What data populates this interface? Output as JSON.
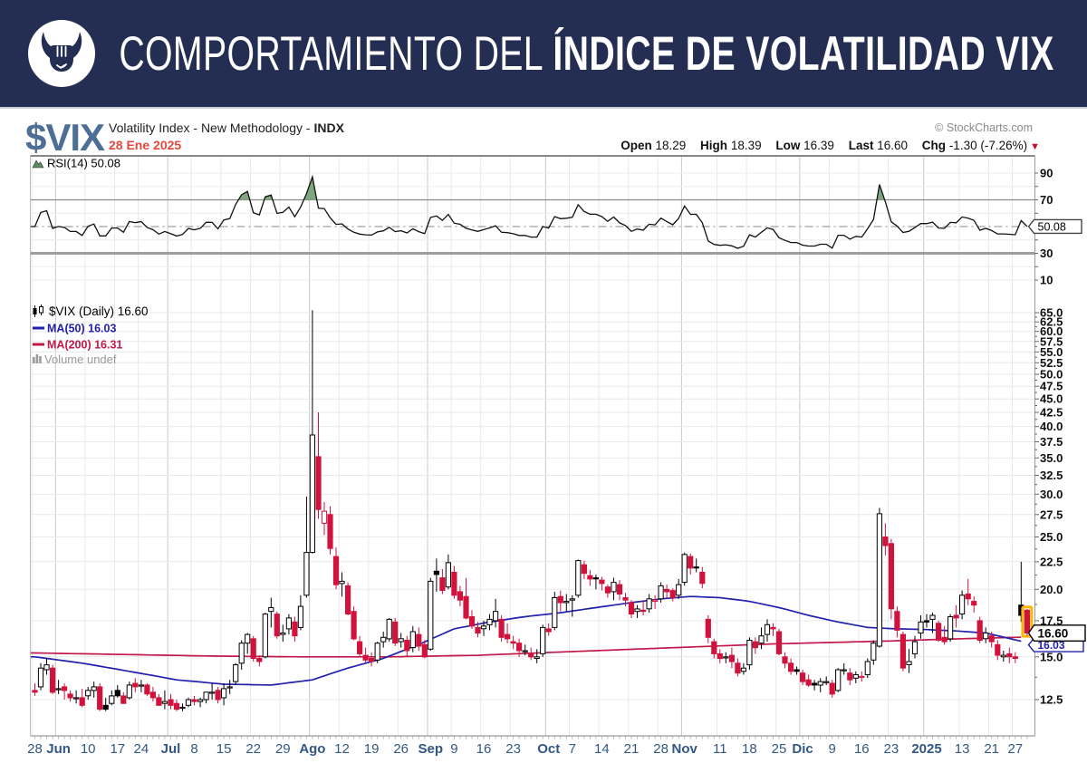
{
  "banner": {
    "logo": "bull-icon",
    "title_regular": "COMPORTAMIENTO DEL",
    "title_bold": "ÍNDICE DE VOLATILIDAD VIX",
    "bg_color": "#242e52"
  },
  "header": {
    "symbol": "$VIX",
    "description": "Volatility Index - New Methodology - ",
    "exchange": "INDX",
    "date": "28 Ene 2025",
    "credit": "© StockCharts.com",
    "quote": {
      "open_label": "Open",
      "open_value": "18.29",
      "high_label": "High",
      "high_value": "18.39",
      "low_label": "Low",
      "low_value": "16.39",
      "last_label": "Last",
      "last_value": "16.60",
      "chg_label": "Chg",
      "chg_value": "-1.30 (-7.26%)",
      "arrow": "▼"
    }
  },
  "chart_data": {
    "type": "candlestick",
    "symbol": "$VIX",
    "timeframe": "Daily",
    "legend": {
      "rsi": "RSI(14) 50.08",
      "price": "$VIX (Daily) 16.60",
      "ma50": "MA(50) 16.03",
      "ma200": "MA(200) 16.31",
      "volume": "Volume undef"
    },
    "last": {
      "price": "16.60",
      "ma50": "16.03",
      "ma200": "16.31",
      "rsi": "50.08"
    },
    "rsi_axis": {
      "ticks": [
        90,
        70,
        30,
        10
      ],
      "overbought": 70,
      "mid": 50,
      "oversold": 30,
      "light_lines": [
        90,
        80,
        60,
        40,
        20,
        10
      ]
    },
    "price_axis": {
      "scale": "log",
      "ticks": [
        65,
        62.5,
        60,
        57.5,
        55,
        52.5,
        50,
        47.5,
        45,
        42.5,
        40,
        37.5,
        35,
        32.5,
        30,
        27.5,
        25,
        22.5,
        20,
        17.5,
        15,
        12.5
      ]
    },
    "x_ticks": [
      {
        "i": 0,
        "t": "28"
      },
      {
        "i": 4,
        "t": "Jun",
        "m": true
      },
      {
        "i": 9,
        "t": "10"
      },
      {
        "i": 14,
        "t": "17"
      },
      {
        "i": 18,
        "t": "24"
      },
      {
        "i": 23,
        "t": "Jul",
        "m": true
      },
      {
        "i": 27,
        "t": "8"
      },
      {
        "i": 32,
        "t": "15"
      },
      {
        "i": 37,
        "t": "22"
      },
      {
        "i": 42,
        "t": "29"
      },
      {
        "i": 47,
        "t": "Ago",
        "m": true
      },
      {
        "i": 52,
        "t": "12"
      },
      {
        "i": 57,
        "t": "19"
      },
      {
        "i": 62,
        "t": "26"
      },
      {
        "i": 67,
        "t": "Sep",
        "m": true
      },
      {
        "i": 71,
        "t": "9"
      },
      {
        "i": 76,
        "t": "16"
      },
      {
        "i": 81,
        "t": "23"
      },
      {
        "i": 87,
        "t": "Oct",
        "m": true
      },
      {
        "i": 91,
        "t": "7"
      },
      {
        "i": 96,
        "t": "14"
      },
      {
        "i": 101,
        "t": "21"
      },
      {
        "i": 106,
        "t": "28"
      },
      {
        "i": 110,
        "t": "Nov",
        "m": true
      },
      {
        "i": 116,
        "t": "11"
      },
      {
        "i": 121,
        "t": "18"
      },
      {
        "i": 126,
        "t": "25"
      },
      {
        "i": 130,
        "t": "Dic",
        "m": true
      },
      {
        "i": 135,
        "t": "9"
      },
      {
        "i": 140,
        "t": "16"
      },
      {
        "i": 145,
        "t": "23"
      },
      {
        "i": 151,
        "t": "2025",
        "m": true
      },
      {
        "i": 157,
        "t": "13"
      },
      {
        "i": 162,
        "t": "21"
      },
      {
        "i": 166,
        "t": "27"
      }
    ],
    "candles": [
      [
        13.0,
        13.4,
        12.7,
        12.9
      ],
      [
        13.2,
        14.6,
        13.0,
        14.3
      ],
      [
        14.2,
        14.9,
        13.9,
        14.5
      ],
      [
        14.3,
        14.5,
        12.8,
        12.9
      ],
      [
        13.1,
        13.6,
        12.8,
        13.1
      ],
      [
        13.2,
        13.4,
        12.5,
        13.0
      ],
      [
        12.8,
        13.0,
        12.4,
        12.6
      ],
      [
        12.6,
        13.0,
        12.3,
        12.6
      ],
      [
        12.6,
        13.1,
        12.1,
        12.2
      ],
      [
        12.7,
        13.2,
        12.5,
        13.0
      ],
      [
        13.0,
        13.5,
        12.6,
        13.2
      ],
      [
        13.2,
        13.4,
        11.9,
        12.0
      ],
      [
        12.2,
        12.6,
        11.9,
        12.0
      ],
      [
        12.3,
        13.0,
        12.2,
        12.7
      ],
      [
        13.0,
        13.3,
        12.6,
        12.7
      ],
      [
        12.7,
        12.9,
        12.3,
        12.3
      ],
      [
        12.6,
        13.5,
        12.5,
        13.3
      ],
      [
        13.4,
        13.7,
        12.9,
        13.2
      ],
      [
        13.3,
        13.6,
        12.9,
        13.3
      ],
      [
        13.3,
        13.4,
        12.7,
        12.8
      ],
      [
        12.9,
        13.2,
        12.4,
        12.6
      ],
      [
        12.6,
        12.8,
        12.2,
        12.2
      ],
      [
        12.3,
        13.0,
        12.0,
        12.4
      ],
      [
        12.5,
        12.8,
        12.0,
        12.2
      ],
      [
        12.3,
        12.5,
        11.9,
        12.0
      ],
      [
        12.1,
        12.3,
        11.9,
        12.1
      ],
      [
        12.2,
        12.6,
        12.1,
        12.5
      ],
      [
        12.5,
        12.7,
        12.2,
        12.4
      ],
      [
        12.4,
        12.6,
        12.1,
        12.5
      ],
      [
        12.5,
        12.9,
        12.3,
        12.9
      ],
      [
        12.9,
        13.4,
        12.5,
        12.9
      ],
      [
        13.0,
        13.2,
        12.3,
        12.5
      ],
      [
        12.6,
        13.4,
        12.2,
        13.1
      ],
      [
        13.2,
        13.6,
        12.8,
        13.2
      ],
      [
        13.5,
        14.6,
        13.3,
        14.5
      ],
      [
        14.6,
        16.1,
        14.2,
        15.9
      ],
      [
        15.9,
        16.6,
        15.2,
        16.5
      ],
      [
        16.2,
        16.4,
        14.7,
        14.9
      ],
      [
        14.9,
        15.1,
        14.4,
        14.7
      ],
      [
        15.0,
        18.1,
        14.9,
        18.0
      ],
      [
        18.2,
        19.3,
        17.0,
        18.5
      ],
      [
        18.0,
        18.2,
        16.2,
        16.4
      ],
      [
        16.5,
        17.2,
        16.0,
        16.6
      ],
      [
        16.9,
        18.0,
        16.5,
        17.7
      ],
      [
        17.4,
        17.8,
        16.0,
        16.4
      ],
      [
        17.0,
        19.5,
        16.8,
        18.6
      ],
      [
        19.5,
        29.7,
        19.3,
        23.4
      ],
      [
        23.4,
        65.7,
        23.3,
        38.6
      ],
      [
        35.2,
        42.5,
        27.0,
        28.1
      ],
      [
        26.5,
        29.0,
        25.2,
        27.9
      ],
      [
        27.5,
        28.5,
        23.2,
        23.8
      ],
      [
        23.0,
        23.9,
        20.0,
        20.4
      ],
      [
        20.5,
        21.5,
        19.4,
        20.7
      ],
      [
        20.3,
        20.6,
        17.9,
        18.0
      ],
      [
        18.2,
        18.6,
        16.1,
        16.2
      ],
      [
        16.0,
        16.4,
        15.0,
        15.2
      ],
      [
        15.1,
        15.6,
        14.6,
        14.8
      ],
      [
        14.9,
        15.3,
        14.4,
        14.7
      ],
      [
        14.8,
        16.0,
        14.6,
        15.9
      ],
      [
        16.0,
        16.7,
        15.6,
        16.3
      ],
      [
        16.2,
        17.7,
        16.0,
        17.6
      ],
      [
        17.4,
        17.7,
        15.7,
        15.9
      ],
      [
        16.0,
        16.6,
        15.6,
        16.2
      ],
      [
        16.1,
        16.4,
        15.0,
        15.4
      ],
      [
        15.6,
        17.1,
        15.3,
        16.7
      ],
      [
        16.5,
        17.0,
        15.4,
        15.7
      ],
      [
        15.8,
        16.1,
        14.9,
        15.0
      ],
      [
        15.5,
        21.0,
        15.4,
        20.7
      ],
      [
        21.6,
        22.8,
        19.8,
        21.3
      ],
      [
        21.0,
        21.8,
        19.6,
        19.9
      ],
      [
        20.2,
        23.2,
        20.0,
        22.4
      ],
      [
        21.5,
        22.1,
        19.2,
        19.5
      ],
      [
        19.8,
        20.3,
        18.6,
        19.1
      ],
      [
        19.4,
        21.0,
        17.6,
        17.7
      ],
      [
        17.8,
        18.3,
        16.9,
        17.1
      ],
      [
        17.0,
        17.4,
        16.3,
        16.6
      ],
      [
        16.9,
        17.5,
        16.4,
        17.1
      ],
      [
        17.2,
        18.0,
        16.8,
        17.6
      ],
      [
        17.5,
        19.2,
        17.0,
        18.2
      ],
      [
        17.6,
        17.9,
        16.0,
        16.3
      ],
      [
        16.5,
        17.3,
        15.9,
        16.2
      ],
      [
        16.0,
        16.4,
        15.5,
        15.9
      ],
      [
        15.9,
        16.2,
        15.0,
        15.4
      ],
      [
        15.4,
        15.8,
        15.1,
        15.4
      ],
      [
        15.2,
        15.6,
        14.8,
        15.0
      ],
      [
        14.9,
        15.5,
        14.6,
        15.0
      ],
      [
        15.2,
        17.2,
        15.0,
        17.0
      ],
      [
        16.9,
        17.3,
        16.4,
        16.7
      ],
      [
        17.0,
        19.8,
        16.8,
        19.3
      ],
      [
        19.4,
        19.9,
        18.2,
        18.9
      ],
      [
        18.9,
        19.6,
        18.2,
        19.0
      ],
      [
        19.1,
        19.5,
        17.8,
        19.2
      ],
      [
        19.5,
        22.7,
        19.3,
        22.6
      ],
      [
        22.2,
        22.6,
        20.9,
        21.4
      ],
      [
        21.2,
        21.7,
        20.3,
        20.9
      ],
      [
        21.0,
        21.3,
        20.0,
        20.9
      ],
      [
        20.8,
        21.1,
        19.9,
        20.5
      ],
      [
        20.2,
        20.4,
        19.3,
        19.7
      ],
      [
        19.8,
        21.0,
        19.1,
        20.6
      ],
      [
        20.4,
        20.8,
        19.1,
        19.6
      ],
      [
        19.3,
        19.7,
        18.6,
        19.1
      ],
      [
        18.9,
        19.1,
        17.7,
        18.0
      ],
      [
        18.2,
        18.7,
        17.7,
        18.4
      ],
      [
        18.3,
        19.1,
        17.9,
        18.2
      ],
      [
        18.4,
        19.6,
        18.1,
        19.2
      ],
      [
        19.0,
        19.5,
        18.4,
        19.1
      ],
      [
        19.2,
        20.6,
        18.9,
        20.3
      ],
      [
        20.0,
        20.4,
        19.3,
        19.8
      ],
      [
        19.9,
        20.1,
        19.0,
        19.3
      ],
      [
        19.5,
        20.9,
        19.2,
        20.4
      ],
      [
        20.6,
        23.4,
        20.3,
        23.2
      ],
      [
        23.0,
        23.3,
        21.3,
        21.9
      ],
      [
        22.0,
        22.8,
        21.5,
        21.9
      ],
      [
        21.5,
        22.0,
        20.1,
        20.5
      ],
      [
        17.6,
        17.9,
        15.9,
        16.3
      ],
      [
        16.0,
        16.2,
        14.9,
        15.2
      ],
      [
        15.2,
        15.5,
        14.6,
        14.9
      ],
      [
        15.0,
        15.3,
        14.6,
        15.0
      ],
      [
        15.1,
        15.6,
        14.3,
        14.7
      ],
      [
        14.6,
        14.9,
        13.8,
        14.0
      ],
      [
        14.1,
        14.6,
        13.9,
        14.3
      ],
      [
        14.5,
        16.3,
        14.2,
        16.1
      ],
      [
        16.0,
        16.3,
        15.2,
        15.6
      ],
      [
        15.9,
        17.0,
        15.5,
        16.4
      ],
      [
        16.5,
        17.6,
        16.0,
        17.2
      ],
      [
        17.0,
        17.3,
        16.4,
        16.9
      ],
      [
        16.7,
        16.9,
        15.1,
        15.2
      ],
      [
        15.0,
        15.3,
        14.3,
        14.6
      ],
      [
        14.6,
        14.9,
        13.9,
        14.1
      ],
      [
        14.2,
        14.4,
        13.9,
        14.1
      ],
      [
        14.0,
        14.2,
        13.3,
        13.5
      ],
      [
        13.6,
        13.9,
        13.2,
        13.3
      ],
      [
        13.4,
        13.6,
        13.0,
        13.3
      ],
      [
        13.3,
        13.7,
        12.9,
        13.5
      ],
      [
        13.5,
        13.8,
        13.3,
        13.5
      ],
      [
        13.4,
        13.6,
        12.6,
        12.8
      ],
      [
        13.0,
        14.3,
        12.9,
        14.2
      ],
      [
        14.2,
        14.6,
        13.9,
        14.2
      ],
      [
        14.0,
        14.3,
        13.3,
        13.6
      ],
      [
        13.7,
        14.1,
        13.4,
        13.9
      ],
      [
        13.8,
        14.1,
        13.5,
        13.8
      ],
      [
        13.9,
        14.9,
        13.7,
        14.7
      ],
      [
        14.8,
        16.1,
        14.5,
        15.9
      ],
      [
        15.7,
        28.3,
        15.6,
        27.6
      ],
      [
        25.0,
        26.5,
        23.1,
        24.1
      ],
      [
        24.3,
        24.8,
        17.6,
        18.4
      ],
      [
        18.2,
        18.6,
        16.3,
        16.8
      ],
      [
        16.5,
        16.7,
        14.1,
        14.3
      ],
      [
        14.5,
        15.5,
        14.0,
        14.7
      ],
      [
        15.2,
        16.4,
        14.9,
        16.0
      ],
      [
        16.6,
        17.9,
        16.2,
        17.4
      ],
      [
        17.5,
        18.0,
        17.0,
        17.4
      ],
      [
        17.6,
        18.1,
        16.6,
        17.9
      ],
      [
        17.3,
        17.5,
        16.0,
        16.1
      ],
      [
        16.3,
        17.1,
        15.8,
        16.0
      ],
      [
        16.2,
        18.0,
        16.0,
        17.8
      ],
      [
        17.9,
        18.7,
        17.0,
        17.7
      ],
      [
        18.0,
        19.9,
        17.6,
        19.5
      ],
      [
        19.6,
        20.9,
        18.7,
        19.2
      ],
      [
        19.0,
        19.4,
        18.1,
        18.7
      ],
      [
        17.5,
        17.8,
        15.9,
        16.1
      ],
      [
        16.2,
        17.0,
        15.9,
        16.6
      ],
      [
        16.4,
        16.7,
        15.6,
        16.0
      ],
      [
        15.8,
        16.1,
        14.8,
        15.1
      ],
      [
        15.0,
        15.4,
        14.7,
        15.1
      ],
      [
        15.2,
        15.6,
        14.6,
        15.0
      ],
      [
        15.0,
        15.3,
        14.6,
        14.9
      ],
      [
        18.7,
        22.5,
        17.4,
        17.9
      ],
      [
        18.3,
        18.4,
        16.4,
        16.6
      ]
    ],
    "ma50": [
      [
        0,
        15.0
      ],
      [
        8,
        14.6
      ],
      [
        16,
        14.1
      ],
      [
        24,
        13.6
      ],
      [
        32,
        13.35
      ],
      [
        40,
        13.3
      ],
      [
        47,
        13.6
      ],
      [
        53,
        14.3
      ],
      [
        59,
        14.9
      ],
      [
        65,
        15.8
      ],
      [
        71,
        16.9
      ],
      [
        77,
        17.4
      ],
      [
        83,
        17.8
      ],
      [
        89,
        18.1
      ],
      [
        95,
        18.5
      ],
      [
        101,
        18.9
      ],
      [
        106,
        19.2
      ],
      [
        111,
        19.4
      ],
      [
        116,
        19.3
      ],
      [
        121,
        19.0
      ],
      [
        126,
        18.5
      ],
      [
        131,
        17.9
      ],
      [
        136,
        17.4
      ],
      [
        141,
        17.0
      ],
      [
        146,
        16.9
      ],
      [
        151,
        16.85
      ],
      [
        156,
        16.75
      ],
      [
        161,
        16.6
      ],
      [
        167,
        16.03
      ]
    ],
    "ma200": [
      [
        0,
        15.25
      ],
      [
        15,
        15.15
      ],
      [
        30,
        15.05
      ],
      [
        45,
        15.0
      ],
      [
        60,
        15.0
      ],
      [
        75,
        15.1
      ],
      [
        85,
        15.25
      ],
      [
        95,
        15.4
      ],
      [
        105,
        15.55
      ],
      [
        115,
        15.7
      ],
      [
        125,
        15.85
      ],
      [
        135,
        15.95
      ],
      [
        145,
        16.05
      ],
      [
        155,
        16.18
      ],
      [
        167,
        16.31
      ]
    ],
    "colors": {
      "up": "#000000",
      "down": "#d0123c",
      "ma50": "#2121ad",
      "ma200": "#c2194b",
      "rsi_fill": "#7fa67f",
      "axis_text": "#335784",
      "highlight": "#ffb400",
      "grid": "#e9e9e9",
      "grid_month": "#c9c9c9"
    }
  }
}
